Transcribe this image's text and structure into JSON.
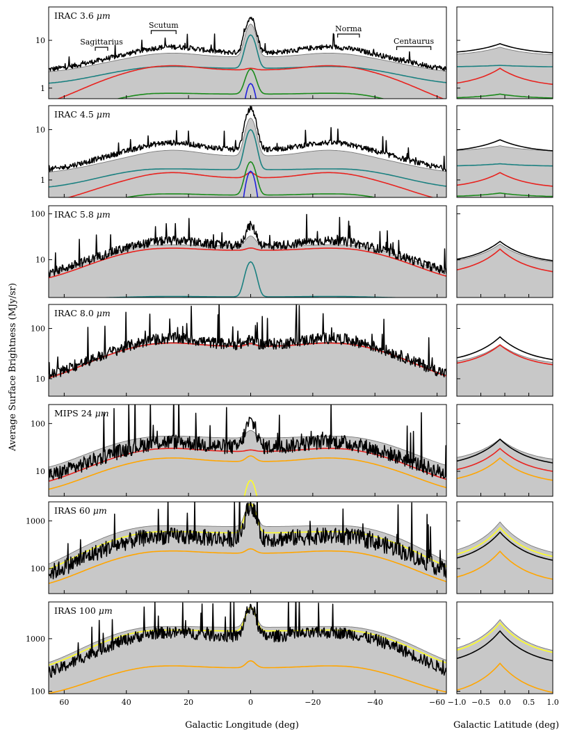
{
  "figure": {
    "ylabel": "Average Surface Brightness (MJy/sr)",
    "xlabel_left": "Galactic Longitude (deg)",
    "xlabel_right": "Galactic Latitude (deg)"
  },
  "chart_data": {
    "type": "line",
    "description_units": "MJy/sr vs degrees",
    "longitude_axis": {
      "range": [
        65,
        -63
      ],
      "ticks": [
        "60",
        "40",
        "20",
        "0",
        "−20",
        "−40",
        "−60"
      ],
      "tick_values": [
        60,
        40,
        20,
        0,
        -20,
        -40,
        -60
      ]
    },
    "latitude_axis": {
      "range": [
        -1.0,
        1.0
      ],
      "ticks": [
        "−1.0",
        "−0.5",
        "0.0",
        "0.5",
        "1.0"
      ],
      "tick_values": [
        -1.0,
        -0.5,
        0.0,
        0.5,
        1.0
      ]
    },
    "colors": {
      "data": "#000000",
      "model_total": "#c8c8c8",
      "model_edge": "#7a7a7a",
      "stars_total": "#1a8080",
      "red": "#e8221e",
      "green": "#1a8a1a",
      "blue": "#1f1fdc",
      "orange": "#ffa500",
      "yellow": "#ffff22"
    },
    "annotations": [
      {
        "label": "Sagittarius",
        "lon_range": [
          50,
          46
        ]
      },
      {
        "label": "Scutum",
        "lon_range": [
          32,
          24
        ]
      },
      {
        "label": "Norma",
        "lon_range": [
          -28,
          -35
        ]
      },
      {
        "label": "Centaurus",
        "lon_range": [
          -47,
          -58
        ]
      }
    ],
    "panels": [
      {
        "name": "IRAC 3.6",
        "title": "IRAC 3.6",
        "unit": "μm",
        "ylim": [
          0.6,
          50
        ],
        "yticks": [
          1,
          10
        ],
        "ytick_labels": [
          "1",
          "10"
        ],
        "series": [
          {
            "name": "data",
            "key": "data",
            "base": 5.5,
            "center": 30,
            "arm": 8.5,
            "edge": 2.2,
            "noise": 0.15
          },
          {
            "name": "model total",
            "key": "model",
            "base": 4.5,
            "center": 22,
            "arm": 6.0,
            "edge": 2.0
          },
          {
            "name": "stars",
            "key": "teal",
            "base": 2.6,
            "center": 13,
            "arm": 3.0,
            "edge": 1.15
          },
          {
            "name": "component red",
            "key": "red",
            "base": 2.4,
            "center": 2.6,
            "arm": 3.3,
            "edge": 0.35
          },
          {
            "name": "component green",
            "key": "green",
            "base": 0.75,
            "center": 2.5,
            "arm": 0.8,
            "edge": 0.2
          },
          {
            "name": "component blue",
            "key": "blue",
            "base": 0.05,
            "center": 1.25,
            "arm": 0.05,
            "edge": 0.01
          }
        ],
        "latitude": [
          {
            "key": "data",
            "peak": 8.5,
            "edge": 5.5
          },
          {
            "key": "model",
            "peak": 7.2,
            "edge": 5.0
          },
          {
            "key": "teal",
            "peak": 3.0,
            "edge": 2.8
          },
          {
            "key": "red",
            "peak": 2.6,
            "edge": 1.2
          },
          {
            "key": "green",
            "peak": 0.75,
            "edge": 0.62
          }
        ]
      },
      {
        "name": "IRAC 4.5",
        "title": "IRAC 4.5",
        "unit": "μm",
        "ylim": [
          0.45,
          30
        ],
        "yticks": [
          1,
          10
        ],
        "ytick_labels": [
          "1",
          "10"
        ],
        "series": [
          {
            "name": "data",
            "key": "data",
            "base": 4.0,
            "center": 26,
            "arm": 6.5,
            "edge": 1.4,
            "noise": 0.15
          },
          {
            "name": "model total",
            "key": "model",
            "base": 3.0,
            "center": 17,
            "arm": 4.5,
            "edge": 1.3
          },
          {
            "name": "stars",
            "key": "teal",
            "base": 1.6,
            "center": 10,
            "arm": 1.7,
            "edge": 0.65
          },
          {
            "name": "component red",
            "key": "red",
            "base": 1.1,
            "center": 1.4,
            "arm": 1.6,
            "edge": 0.3
          },
          {
            "name": "component green",
            "key": "green",
            "base": 0.5,
            "center": 2.3,
            "arm": 0.55,
            "edge": 0.2
          },
          {
            "name": "component blue",
            "key": "blue",
            "base": 0.05,
            "center": 1.5,
            "arm": 0.05,
            "edge": 0.01
          }
        ],
        "latitude": [
          {
            "key": "data",
            "peak": 6.3,
            "edge": 3.8
          },
          {
            "key": "model",
            "peak": 4.8,
            "edge": 3.8
          },
          {
            "key": "teal",
            "peak": 2.1,
            "edge": 1.9
          },
          {
            "key": "red",
            "peak": 1.4,
            "edge": 0.75
          },
          {
            "key": "green",
            "peak": 0.55,
            "edge": 0.47
          }
        ]
      },
      {
        "name": "IRAC 5.8",
        "title": "IRAC 5.8",
        "unit": "μm",
        "ylim": [
          1.5,
          150
        ],
        "yticks": [
          10,
          100
        ],
        "ytick_labels": [
          "10",
          "100"
        ],
        "series": [
          {
            "name": "data",
            "key": "data",
            "base": 20,
            "center": 55,
            "arm": 30,
            "edge": 4.0,
            "noise": 0.28
          },
          {
            "name": "model total",
            "key": "model",
            "base": 20,
            "center": 33,
            "arm": 22,
            "edge": 3.8
          },
          {
            "name": "component red",
            "key": "red",
            "base": 16,
            "center": 18,
            "arm": 19,
            "edge": 3.0
          },
          {
            "name": "stars",
            "key": "teal",
            "base": 1.55,
            "center": 9,
            "arm": 1.6,
            "edge": 1.4
          }
        ],
        "latitude": [
          {
            "key": "data",
            "peak": 25,
            "edge": 9.5
          },
          {
            "key": "model",
            "peak": 22,
            "edge": 9.0
          },
          {
            "key": "red",
            "peak": 17,
            "edge": 5.5
          }
        ]
      },
      {
        "name": "IRAC 8.0",
        "title": "IRAC 8.0",
        "unit": "μm",
        "ylim": [
          4.5,
          300
        ],
        "yticks": [
          10,
          100
        ],
        "ytick_labels": [
          "10",
          "100"
        ],
        "series": [
          {
            "name": "data",
            "key": "data",
            "base": 48,
            "center": 58,
            "arm": 75,
            "edge": 8.5,
            "noise": 0.32
          },
          {
            "name": "model total",
            "key": "model",
            "base": 45,
            "center": 53,
            "arm": 58,
            "edge": 8.0
          },
          {
            "name": "component red",
            "key": "red",
            "base": 44,
            "center": 50,
            "arm": 56,
            "edge": 7.5
          }
        ],
        "latitude": [
          {
            "key": "data",
            "peak": 68,
            "edge": 24
          },
          {
            "key": "model",
            "peak": 48,
            "edge": 21
          },
          {
            "key": "red",
            "peak": 47,
            "edge": 19
          }
        ]
      },
      {
        "name": "MIPS 24",
        "title": "MIPS 24",
        "unit": "μm",
        "ylim": [
          3.0,
          250
        ],
        "yticks": [
          10,
          100
        ],
        "ytick_labels": [
          "10",
          "100"
        ],
        "series": [
          {
            "name": "data",
            "key": "data",
            "base": 32,
            "center": 110,
            "arm": 48,
            "edge": 6.0,
            "noise": 0.45
          },
          {
            "name": "model total",
            "key": "model",
            "base": 50,
            "center": 72,
            "arm": 58,
            "edge": 9.0
          },
          {
            "name": "component red",
            "key": "red",
            "base": 26,
            "center": 28,
            "arm": 33,
            "edge": 4.5
          },
          {
            "name": "component orange",
            "key": "orange",
            "base": 16,
            "center": 21,
            "arm": 21,
            "edge": 3.2
          },
          {
            "name": "component yellow",
            "key": "yellow",
            "base": 1.0,
            "center": 6.5,
            "arm": 1.0,
            "edge": 1.0
          }
        ],
        "latitude": [
          {
            "key": "model",
            "peak": 48,
            "edge": 18
          },
          {
            "key": "data",
            "peak": 47,
            "edge": 15
          },
          {
            "key": "red",
            "peak": 30,
            "edge": 10
          },
          {
            "key": "orange",
            "peak": 19,
            "edge": 6.5
          }
        ]
      },
      {
        "name": "IRAS 60",
        "title": "IRAS 60",
        "unit": "μm",
        "ylim": [
          30,
          2500
        ],
        "yticks": [
          100,
          1000
        ],
        "ytick_labels": [
          "100",
          "1000"
        ],
        "series": [
          {
            "name": "data",
            "key": "data",
            "base": 420,
            "center": 2100,
            "arm": 520,
            "edge": 50,
            "noise": 0.5
          },
          {
            "name": "model total",
            "key": "model",
            "base": 760,
            "center": 2400,
            "arm": 820,
            "edge": 70
          },
          {
            "name": "component yellow",
            "key": "yellow",
            "base": 560,
            "center": 2300,
            "arm": 620,
            "edge": 58
          },
          {
            "name": "component orange",
            "key": "orange",
            "base": 210,
            "center": 260,
            "arm": 250,
            "edge": 35
          }
        ],
        "latitude": [
          {
            "key": "model",
            "peak": 950,
            "edge": 220
          },
          {
            "key": "yellow",
            "peak": 720,
            "edge": 180
          },
          {
            "key": "data",
            "peak": 580,
            "edge": 150
          },
          {
            "key": "orange",
            "peak": 230,
            "edge": 60
          }
        ]
      },
      {
        "name": "IRAS 100",
        "title": "IRAS 100",
        "unit": "μm",
        "ylim": [
          90,
          5000
        ],
        "yticks": [
          100,
          1000
        ],
        "ytick_labels": [
          "100",
          "1000"
        ],
        "series": [
          {
            "name": "data",
            "key": "data",
            "base": 1100,
            "center": 4000,
            "arm": 1450,
            "edge": 150,
            "noise": 0.32
          },
          {
            "name": "model total",
            "key": "model",
            "base": 1650,
            "center": 4100,
            "arm": 1750,
            "edge": 240
          },
          {
            "name": "component yellow",
            "key": "yellow",
            "base": 1400,
            "center": 3900,
            "arm": 1500,
            "edge": 220
          },
          {
            "name": "component orange",
            "key": "orange",
            "base": 280,
            "center": 380,
            "arm": 320,
            "edge": 75
          }
        ],
        "latitude": [
          {
            "key": "model",
            "peak": 2300,
            "edge": 600
          },
          {
            "key": "yellow",
            "peak": 2000,
            "edge": 550
          },
          {
            "key": "data",
            "peak": 1400,
            "edge": 380
          },
          {
            "key": "orange",
            "peak": 340,
            "edge": 95
          }
        ]
      }
    ]
  }
}
